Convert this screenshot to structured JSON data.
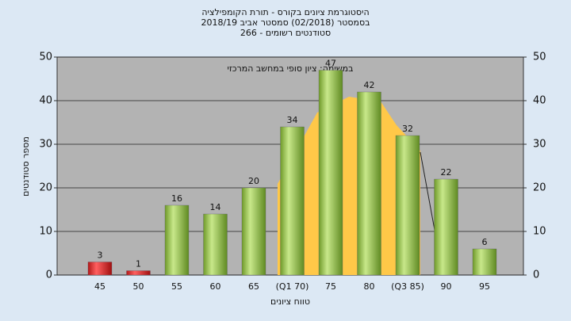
{
  "chart_data": {
    "type": "bar",
    "title_lines": [
      "היסטוגרמת ציונים בקורס - תורת הקומפילציה",
      "בסמסטר  (02/2018)  סמסטר אביב 2018/19",
      "סטודנטים רשומים - 266"
    ],
    "annotation": "במשימה: ציון סופי במחשב המרכזי",
    "xlabel": "טווח ציונים",
    "ylabel": "מספר סטודנטים",
    "categories": [
      "45",
      "50",
      "55",
      "60",
      "65",
      "(Q1 70)",
      "75",
      "80",
      "(Q3 85)",
      "90",
      "95"
    ],
    "values": [
      3,
      1,
      16,
      14,
      20,
      34,
      47,
      42,
      32,
      22,
      6
    ],
    "colors": [
      "red",
      "red",
      "green",
      "green",
      "green",
      "green",
      "green",
      "green",
      "green",
      "green",
      "green"
    ],
    "ylim": [
      0,
      50
    ],
    "yticks": [
      0,
      10,
      20,
      30,
      40,
      50
    ],
    "y2lim": [
      0,
      50
    ],
    "y2ticks": [
      0,
      10,
      20,
      30,
      40,
      50
    ],
    "grid": true
  }
}
